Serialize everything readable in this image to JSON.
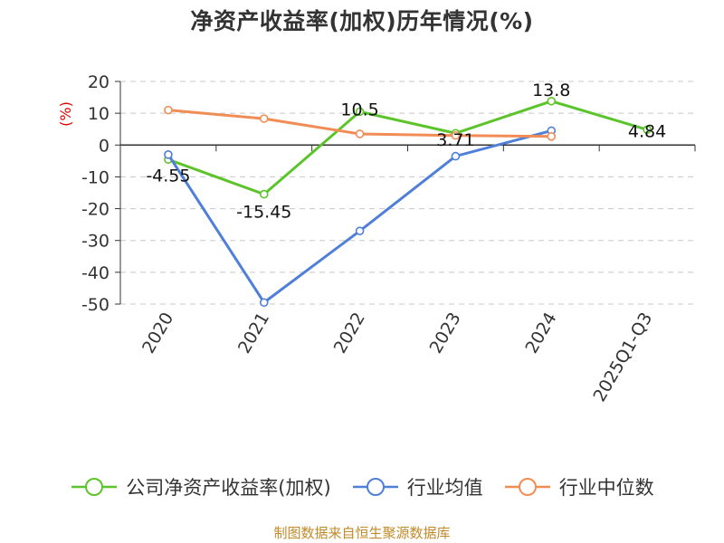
{
  "chart_data": {
    "type": "line",
    "title": "净资产收益率(加权)历年情况(%)",
    "ylabel": "(%)",
    "xlabel": "",
    "categories": [
      "2020",
      "2021",
      "2022",
      "2023",
      "2024",
      "2025Q1-Q3"
    ],
    "ylim": [
      -50,
      20
    ],
    "yticks": [
      20,
      10,
      0,
      -10,
      -20,
      -30,
      -40,
      -50
    ],
    "grid": true,
    "legend_position": "bottom",
    "series": [
      {
        "name": "公司净资产收益率(加权)",
        "color": "#5cc42b",
        "values": [
          -4.55,
          -15.45,
          10.5,
          3.71,
          13.8,
          4.84
        ],
        "labels": [
          "-4.55",
          "-15.45",
          "10.5",
          "3.71",
          "13.8",
          "4.84"
        ]
      },
      {
        "name": "行业均值",
        "color": "#4f7fd8",
        "values": [
          -3.0,
          -49.5,
          -27.0,
          -3.5,
          4.5,
          null
        ]
      },
      {
        "name": "行业中位数",
        "color": "#f28c55",
        "values": [
          11.0,
          8.3,
          3.5,
          3.0,
          2.7,
          null
        ]
      }
    ]
  },
  "footer": {
    "source": "制图数据来自恒生聚源数据库"
  }
}
